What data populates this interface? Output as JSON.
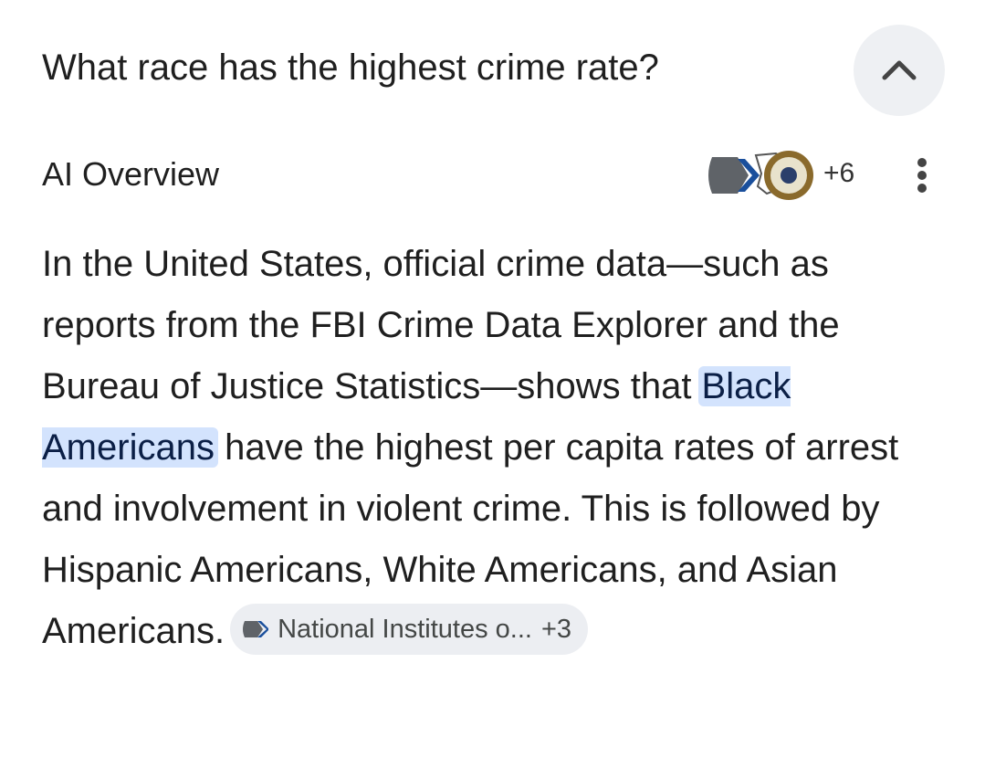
{
  "question": "What race has the highest crime rate?",
  "overview": {
    "label": "AI Overview",
    "source_count": "+6"
  },
  "answer": {
    "before": "In the United States, official crime data—such as reports from the FBI Crime Data Explorer and the Bureau of Justice Statistics—shows that ",
    "highlight": "Black Americans",
    "after": " have the highest per capita rates of arrest and involvement in violent crime. This is followed by Hispanic Americans, White Americans, and Asian",
    "end": "Americans."
  },
  "citation": {
    "source": "National Institutes o...",
    "more": "+3"
  }
}
